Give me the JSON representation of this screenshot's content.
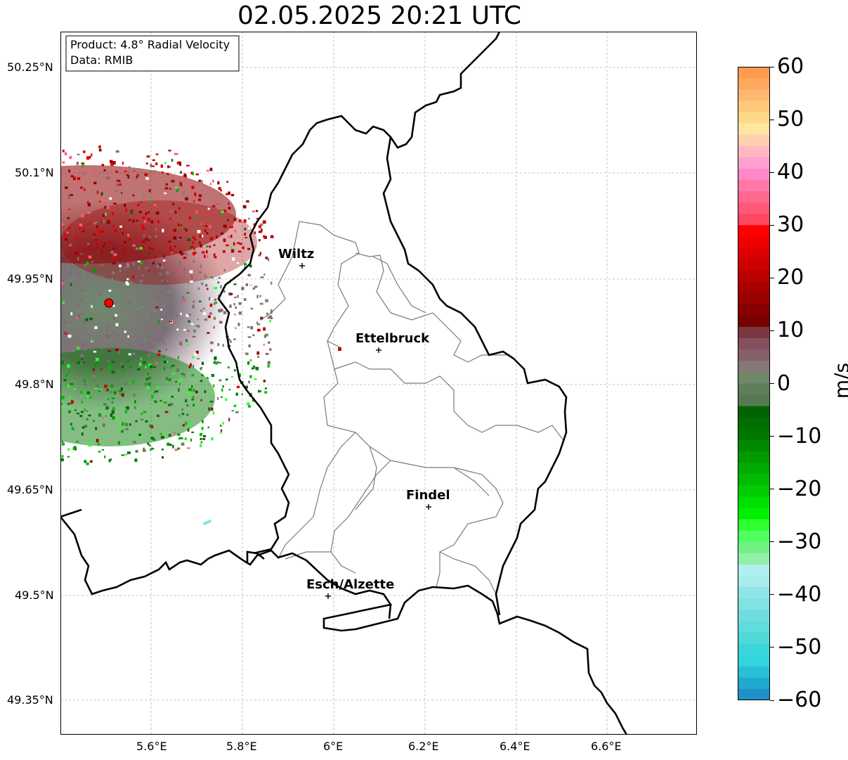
{
  "title": "02.05.2025 20:21 UTC",
  "info_box": {
    "product": "Product: 4.8° Radial Velocity",
    "data": "Data: RMIB"
  },
  "lat_ticks": [
    "50.25°N",
    "50.1°N",
    "49.95°N",
    "49.8°N",
    "49.65°N",
    "49.5°N",
    "49.35°N"
  ],
  "lon_ticks": [
    "5.6°E",
    "5.8°E",
    "6°E",
    "6.2°E",
    "6.4°E",
    "6.6°E"
  ],
  "cities": [
    {
      "name": "Wiltz"
    },
    {
      "name": "Ettelbruck"
    },
    {
      "name": "Findel"
    },
    {
      "name": "Esch/Alzette"
    }
  ],
  "colorbar": {
    "label": "m/s",
    "ticks": [
      "60",
      "50",
      "40",
      "30",
      "20",
      "10",
      "0",
      "−10",
      "−20",
      "−30",
      "−40",
      "−50",
      "−60"
    ],
    "min": -60,
    "max": 60
  }
}
